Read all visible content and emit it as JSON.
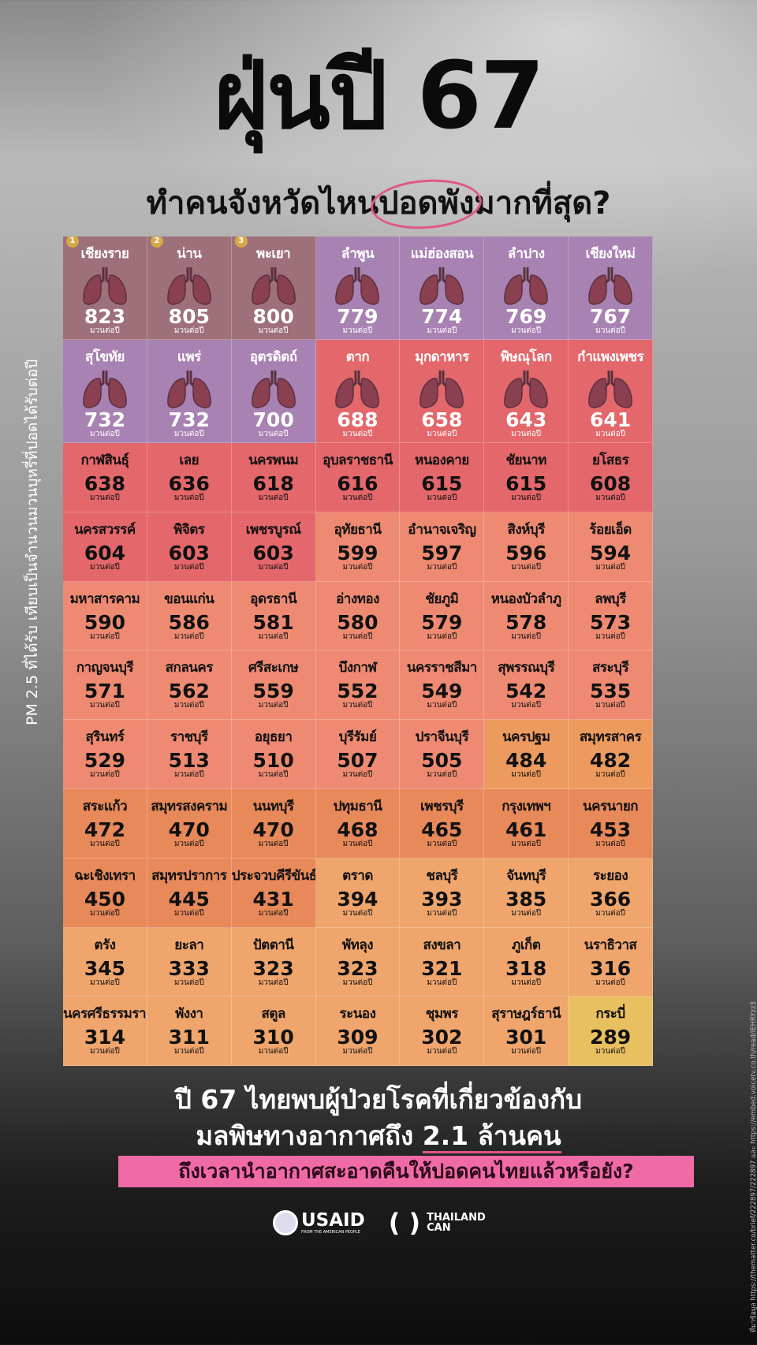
{
  "title": "ฝุ่นปี 67",
  "subtitle": {
    "before": "ทำคนจังหวัดไหน",
    "circled": "ปอดพัง",
    "after": "มากที่สุด?"
  },
  "side_label": "PM 2.5 ที่ได้รับ เทียบเป็นจำนวนมวนบุหรี่ที่ปอดได้รับต่อปี",
  "unit": "มวนต่อปี",
  "provinces": [
    {
      "name": "เชียงราย",
      "value": "823",
      "rank": "1",
      "tier": 0
    },
    {
      "name": "น่าน",
      "value": "805",
      "rank": "2",
      "tier": 0
    },
    {
      "name": "พะเยา",
      "value": "800",
      "rank": "3",
      "tier": 0
    },
    {
      "name": "ลำพูน",
      "value": "779",
      "tier": 1
    },
    {
      "name": "แม่ฮ่องสอน",
      "value": "774",
      "tier": 1
    },
    {
      "name": "ลำปาง",
      "value": "769",
      "tier": 1
    },
    {
      "name": "เชียงใหม่",
      "value": "767",
      "tier": 1
    },
    {
      "name": "สุโขทัย",
      "value": "732",
      "tier": 1
    },
    {
      "name": "แพร่",
      "value": "732",
      "tier": 1
    },
    {
      "name": "อุตรดิตถ์",
      "value": "700",
      "tier": 1
    },
    {
      "name": "ตาก",
      "value": "688",
      "tier": 2
    },
    {
      "name": "มุกดาหาร",
      "value": "658",
      "tier": 2
    },
    {
      "name": "พิษณุโลก",
      "value": "643",
      "tier": 2
    },
    {
      "name": "กำแพงเพชร",
      "value": "641",
      "tier": 2
    },
    {
      "name": "กาฬสินธุ์",
      "value": "638",
      "tier": 2
    },
    {
      "name": "เลย",
      "value": "636",
      "tier": 2
    },
    {
      "name": "นครพนม",
      "value": "618",
      "tier": 2
    },
    {
      "name": "อุบลราชธานี",
      "value": "616",
      "tier": 2
    },
    {
      "name": "หนองคาย",
      "value": "615",
      "tier": 2
    },
    {
      "name": "ชัยนาท",
      "value": "615",
      "tier": 2
    },
    {
      "name": "ยโสธร",
      "value": "608",
      "tier": 2
    },
    {
      "name": "นครสวรรค์",
      "value": "604",
      "tier": 2
    },
    {
      "name": "พิจิตร",
      "value": "603",
      "tier": 2
    },
    {
      "name": "เพชรบูรณ์",
      "value": "603",
      "tier": 2
    },
    {
      "name": "อุทัยธานี",
      "value": "599",
      "tier": 3
    },
    {
      "name": "อำนาจเจริญ",
      "value": "597",
      "tier": 3
    },
    {
      "name": "สิงห์บุรี",
      "value": "596",
      "tier": 3
    },
    {
      "name": "ร้อยเอ็ด",
      "value": "594",
      "tier": 3
    },
    {
      "name": "มหาสารคาม",
      "value": "590",
      "tier": 3
    },
    {
      "name": "ขอนแก่น",
      "value": "586",
      "tier": 3
    },
    {
      "name": "อุดรธานี",
      "value": "581",
      "tier": 3
    },
    {
      "name": "อ่างทอง",
      "value": "580",
      "tier": 3
    },
    {
      "name": "ชัยภูมิ",
      "value": "579",
      "tier": 3
    },
    {
      "name": "หนองบัวลำภู",
      "value": "578",
      "tier": 3
    },
    {
      "name": "ลพบุรี",
      "value": "573",
      "tier": 3
    },
    {
      "name": "กาญจนบุรี",
      "value": "571",
      "tier": 3
    },
    {
      "name": "สกลนคร",
      "value": "562",
      "tier": 3
    },
    {
      "name": "ศรีสะเกษ",
      "value": "559",
      "tier": 3
    },
    {
      "name": "บึงกาฬ",
      "value": "552",
      "tier": 3
    },
    {
      "name": "นครราชสีมา",
      "value": "549",
      "tier": 3
    },
    {
      "name": "สุพรรณบุรี",
      "value": "542",
      "tier": 3
    },
    {
      "name": "สระบุรี",
      "value": "535",
      "tier": 3
    },
    {
      "name": "สุรินทร์",
      "value": "529",
      "tier": 3
    },
    {
      "name": "ราชบุรี",
      "value": "513",
      "tier": 3
    },
    {
      "name": "อยุธยา",
      "value": "510",
      "tier": 3
    },
    {
      "name": "บุรีรัมย์",
      "value": "507",
      "tier": 3
    },
    {
      "name": "ปราจีนบุรี",
      "value": "505",
      "tier": 3
    },
    {
      "name": "นครปฐม",
      "value": "484",
      "tier": 4
    },
    {
      "name": "สมุทรสาคร",
      "value": "482",
      "tier": 4
    },
    {
      "name": "สระแก้ว",
      "value": "472",
      "tier": 5
    },
    {
      "name": "สมุทรสงคราม",
      "value": "470",
      "tier": 5
    },
    {
      "name": "นนทบุรี",
      "value": "470",
      "tier": 5
    },
    {
      "name": "ปทุมธานี",
      "value": "468",
      "tier": 5
    },
    {
      "name": "เพชรบุรี",
      "value": "465",
      "tier": 5
    },
    {
      "name": "กรุงเทพฯ",
      "value": "461",
      "tier": 5
    },
    {
      "name": "นครนายก",
      "value": "453",
      "tier": 5
    },
    {
      "name": "ฉะเชิงเทรา",
      "value": "450",
      "tier": 5
    },
    {
      "name": "สมุทรปราการ",
      "value": "445",
      "tier": 5
    },
    {
      "name": "ประจวบคีรีขันธ์",
      "value": "431",
      "tier": 5
    },
    {
      "name": "ตราด",
      "value": "394",
      "tier": 6
    },
    {
      "name": "ชลบุรี",
      "value": "393",
      "tier": 6
    },
    {
      "name": "จันทบุรี",
      "value": "385",
      "tier": 6
    },
    {
      "name": "ระยอง",
      "value": "366",
      "tier": 6
    },
    {
      "name": "ตรัง",
      "value": "345",
      "tier": 6
    },
    {
      "name": "ยะลา",
      "value": "333",
      "tier": 6
    },
    {
      "name": "ปัตตานี",
      "value": "323",
      "tier": 6
    },
    {
      "name": "พัทลุง",
      "value": "323",
      "tier": 6
    },
    {
      "name": "สงขลา",
      "value": "321",
      "tier": 6
    },
    {
      "name": "ภูเก็ต",
      "value": "318",
      "tier": 6
    },
    {
      "name": "นราธิวาส",
      "value": "316",
      "tier": 6
    },
    {
      "name": "นครศรีธรรมราช",
      "value": "314",
      "tier": 6
    },
    {
      "name": "พังงา",
      "value": "311",
      "tier": 6
    },
    {
      "name": "สตูล",
      "value": "310",
      "tier": 6
    },
    {
      "name": "ระนอง",
      "value": "309",
      "tier": 6
    },
    {
      "name": "ชุมพร",
      "value": "302",
      "tier": 6
    },
    {
      "name": "สุราษฎร์ธานี",
      "value": "301",
      "tier": 6
    },
    {
      "name": "กระบี่",
      "value": "289",
      "tier": 7
    }
  ],
  "bottom": {
    "line1": "ปี 67 ไทยพบผู้ป่วยโรคที่เกี่ยวข้องกับ",
    "line2_before": "มลพิษทางอากาศถึง ",
    "line2_highlight": "2.1 ล้านคน",
    "cta": "ถึงเวลานำอากาศสะอาดคืนให้ปอดคนไทยแล้วหรือยัง?"
  },
  "logos": {
    "usaid": "USAID",
    "usaid_tag": "FROM THE AMERICAN PEOPLE",
    "tc1": "THAILAND",
    "tc2": "CAN"
  },
  "source": "ที่มาข้อมูล https://thematter.co/brief/222897/222897 และ https://embed.voicetv.co.th/read/IEHRYzz3"
}
